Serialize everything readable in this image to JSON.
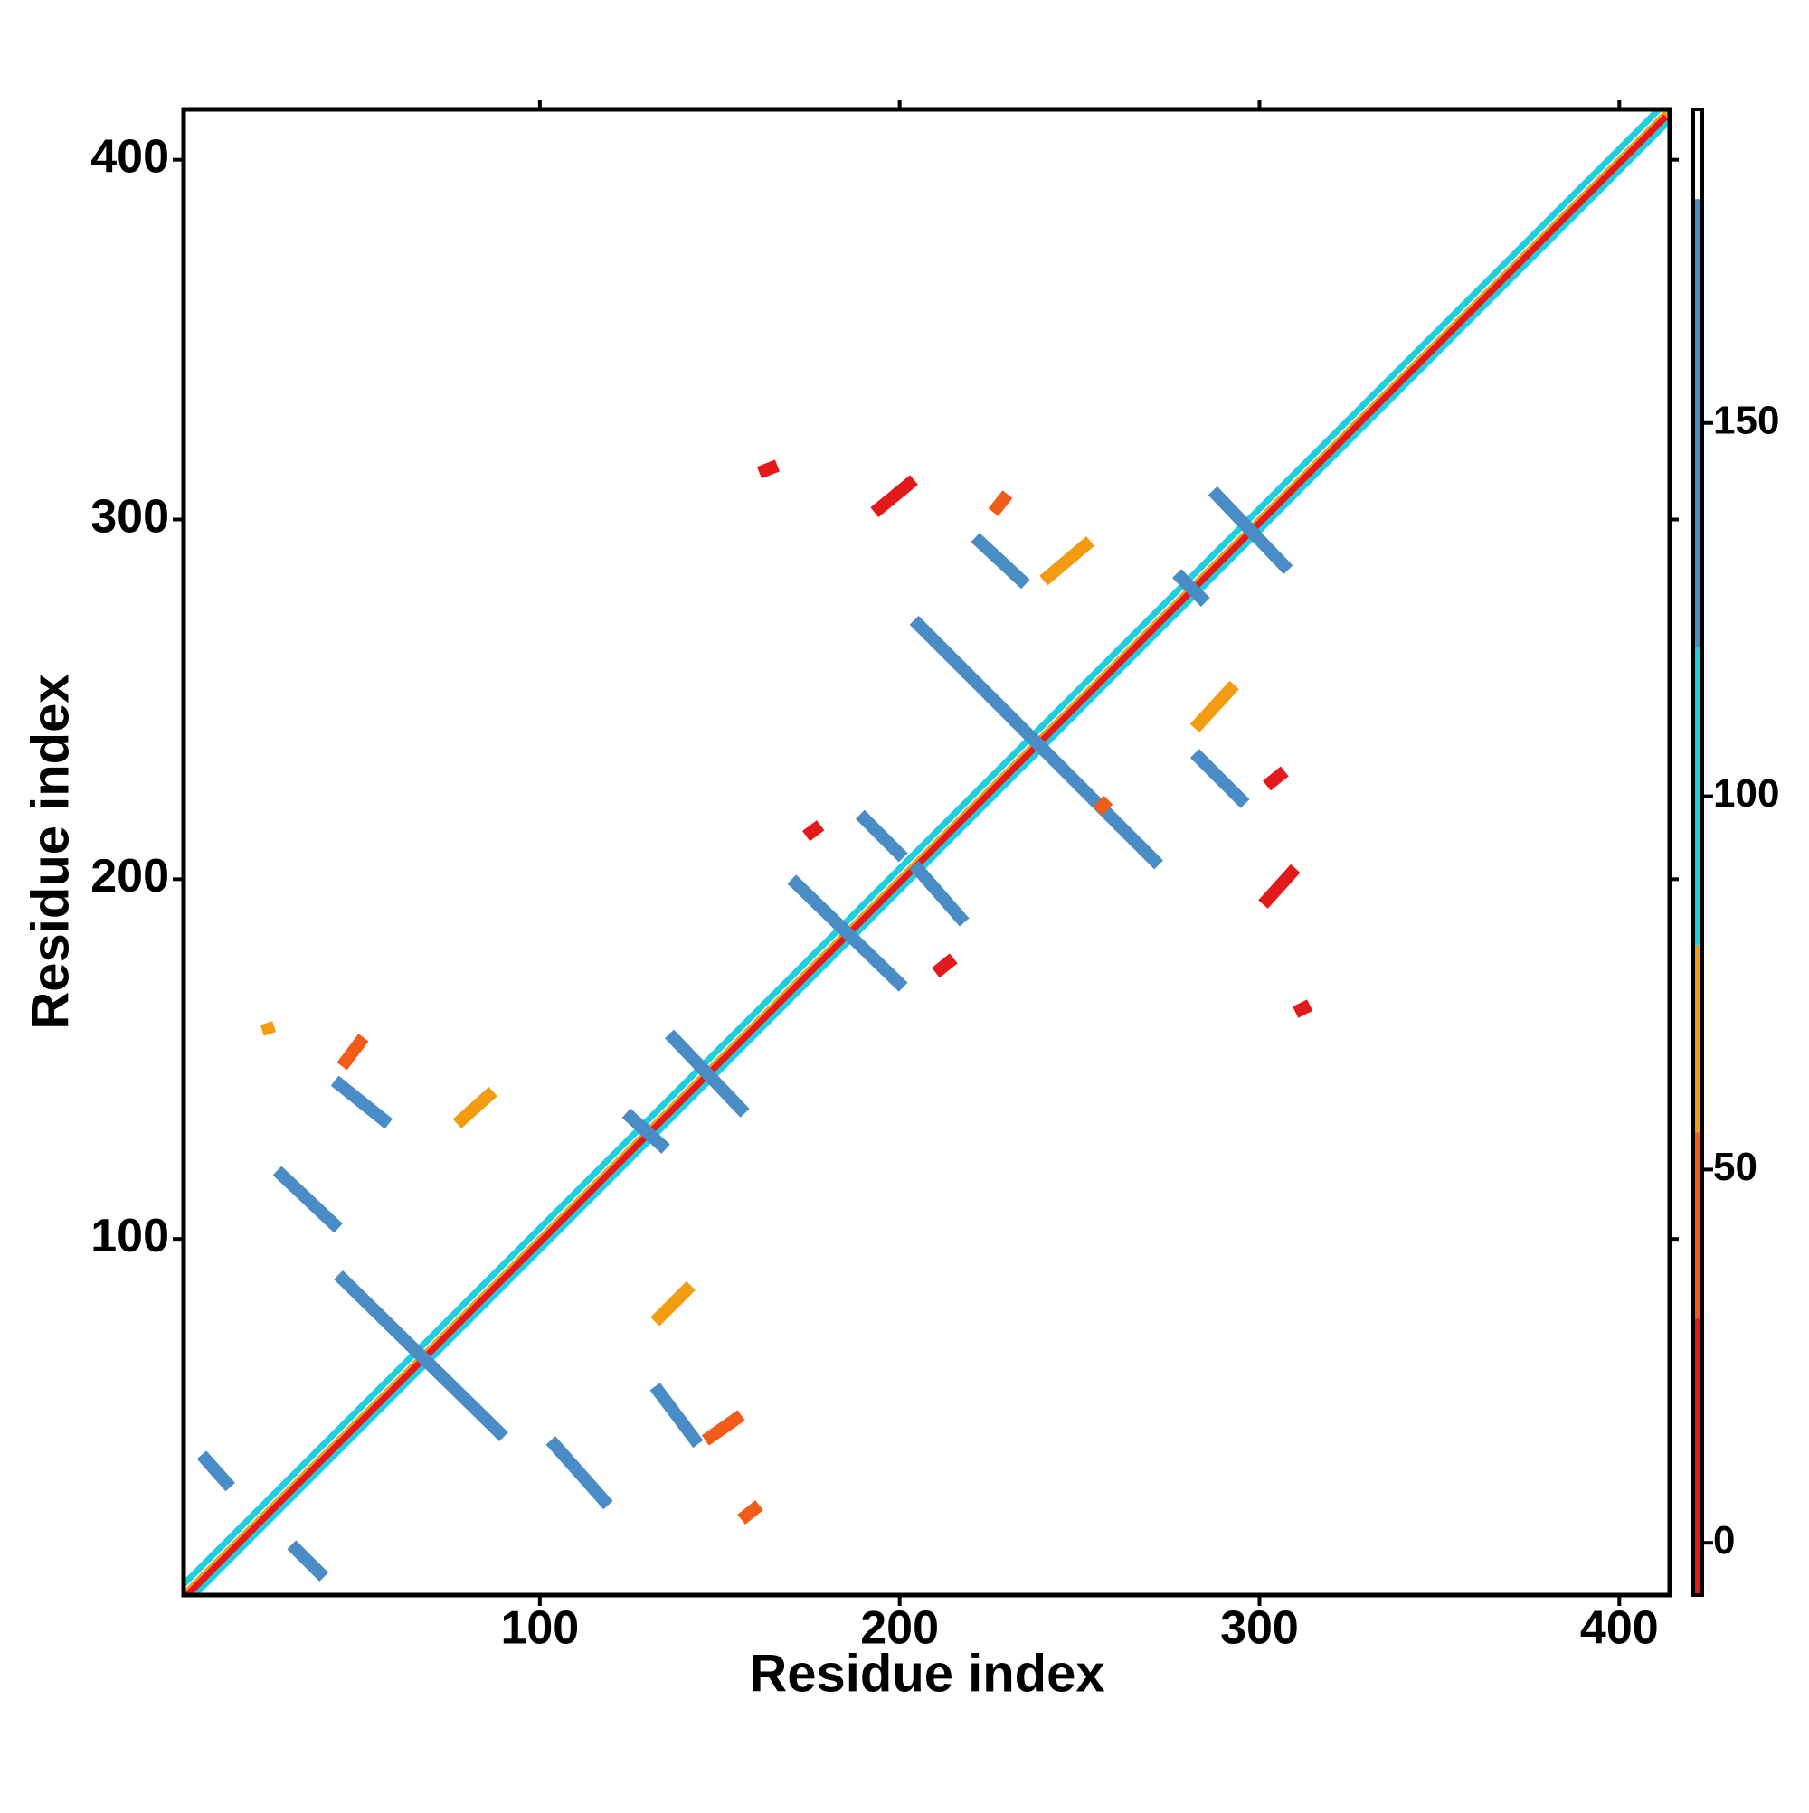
{
  "chart_data": {
    "type": "contact_map",
    "xlabel": "Residue index",
    "ylabel": "Residue index",
    "xlim": [
      1,
      414
    ],
    "ylim": [
      1,
      414
    ],
    "xticks": [
      100,
      200,
      300,
      400
    ],
    "yticks": [
      100,
      200,
      300,
      400
    ],
    "colorbar": {
      "lim": [
        -7,
        192
      ],
      "ticks": [
        0,
        50,
        100,
        150
      ],
      "bands": [
        {
          "from": -7,
          "to": 30,
          "color": "#e31a1c"
        },
        {
          "from": 30,
          "to": 55,
          "color": "#f25c19"
        },
        {
          "from": 55,
          "to": 80,
          "color": "#f39c12"
        },
        {
          "from": 80,
          "to": 120,
          "color": "#1fcfe0"
        },
        {
          "from": 120,
          "to": 180,
          "color": "#4a8dc6"
        },
        {
          "from": 180,
          "to": 192,
          "color": "#ffffff"
        }
      ]
    },
    "stripes": [
      {
        "from": [
          4,
          1
        ],
        "to": [
          414,
          411
        ],
        "value": 100
      },
      {
        "from": [
          1,
          4
        ],
        "to": [
          411,
          414
        ],
        "value": 100
      },
      {
        "from": [
          1,
          1
        ],
        "to": [
          414,
          414
        ],
        "value": 60
      },
      {
        "from": [
          2,
          1
        ],
        "to": [
          413,
          412
        ],
        "value": 10
      },
      {
        "from": [
          44,
          90
        ],
        "to": [
          90,
          45
        ],
        "value": 150
      },
      {
        "from": [
          27,
          119
        ],
        "to": [
          44,
          103
        ],
        "value": 150
      },
      {
        "from": [
          43,
          144
        ],
        "to": [
          58,
          132
        ],
        "value": 150
      },
      {
        "from": [
          103,
          44
        ],
        "to": [
          119,
          26
        ],
        "value": 150
      },
      {
        "from": [
          132,
          59
        ],
        "to": [
          144,
          43
        ],
        "value": 150
      },
      {
        "from": [
          6,
          40
        ],
        "to": [
          14,
          31
        ],
        "value": 150
      },
      {
        "from": [
          31,
          15
        ],
        "to": [
          40,
          6
        ],
        "value": 150
      },
      {
        "from": [
          136,
          157
        ],
        "to": [
          157,
          135
        ],
        "value": 150
      },
      {
        "from": [
          124,
          135
        ],
        "to": [
          135,
          125
        ],
        "value": 150
      },
      {
        "from": [
          170,
          200
        ],
        "to": [
          201,
          170
        ],
        "value": 150
      },
      {
        "from": [
          189,
          218
        ],
        "to": [
          201,
          206
        ],
        "value": 150
      },
      {
        "from": [
          204,
          204
        ],
        "to": [
          218,
          188
        ],
        "value": 150
      },
      {
        "from": [
          204,
          272
        ],
        "to": [
          272,
          204
        ],
        "value": 150
      },
      {
        "from": [
          221,
          295
        ],
        "to": [
          235,
          282
        ],
        "value": 150
      },
      {
        "from": [
          282,
          235
        ],
        "to": [
          296,
          221
        ],
        "value": 150
      },
      {
        "from": [
          287,
          308
        ],
        "to": [
          308,
          286
        ],
        "value": 150
      },
      {
        "from": [
          277,
          285
        ],
        "to": [
          285,
          277
        ],
        "value": 150
      },
      {
        "from": [
          24,
          160
        ],
        "to": [
          25,
          157
        ],
        "value": 60
      },
      {
        "from": [
          45,
          148
        ],
        "to": [
          51,
          156
        ],
        "value": 40
      },
      {
        "from": [
          77,
          132
        ],
        "to": [
          87,
          141
        ],
        "value": 60
      },
      {
        "from": [
          146,
          44
        ],
        "to": [
          156,
          51
        ],
        "value": 40
      },
      {
        "from": [
          132,
          77
        ],
        "to": [
          142,
          87
        ],
        "value": 60
      },
      {
        "from": [
          156,
          22
        ],
        "to": [
          161,
          26
        ],
        "value": 40
      },
      {
        "from": [
          161,
          313
        ],
        "to": [
          166,
          315
        ],
        "value": 20
      },
      {
        "from": [
          193,
          302
        ],
        "to": [
          204,
          311
        ],
        "value": 20
      },
      {
        "from": [
          240,
          283
        ],
        "to": [
          253,
          294
        ],
        "value": 60
      },
      {
        "from": [
          282,
          242
        ],
        "to": [
          293,
          254
        ],
        "value": 60
      },
      {
        "from": [
          301,
          193
        ],
        "to": [
          310,
          203
        ],
        "value": 20
      },
      {
        "from": [
          310,
          163
        ],
        "to": [
          314,
          165
        ],
        "value": 20
      },
      {
        "from": [
          174,
          212
        ],
        "to": [
          178,
          215
        ],
        "value": 20
      },
      {
        "from": [
          210,
          174
        ],
        "to": [
          215,
          178
        ],
        "value": 20
      },
      {
        "from": [
          226,
          302
        ],
        "to": [
          230,
          307
        ],
        "value": 40
      },
      {
        "from": [
          255,
          219
        ],
        "to": [
          258,
          222
        ],
        "value": 40
      },
      {
        "from": [
          302,
          226
        ],
        "to": [
          307,
          230
        ],
        "value": 20
      }
    ]
  }
}
